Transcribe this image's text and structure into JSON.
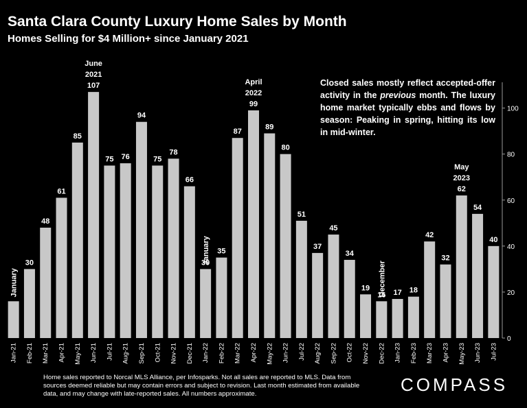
{
  "header": {
    "title": "Santa Clara County Luxury Home Sales by Month",
    "subtitle": "Homes Selling for $4 Million+ since January 2021"
  },
  "commentary": {
    "part1": "Closed sales mostly reflect accepted-offer activity in the ",
    "emphasis": "previous",
    "part2": " month. The luxury home market typically ebbs and flows by season: Peaking in spring, hitting its low in mid-winter."
  },
  "footnote": "Home sales reported to Norcal MLS Alliance, per Infosparks. Not all sales are reported to MLS. Data from sources deemed reliable but may contain errors and subject to revision.  Last month estimated from available data, and may change with late-reported sales. All numbers approximate.",
  "brand": "COMPASS",
  "colors": {
    "background": "#000000",
    "bar": "#c8c8c8",
    "text": "#ffffff"
  },
  "chart_data": {
    "type": "bar",
    "title": "Santa Clara County Luxury Home Sales by Month",
    "subtitle": "Homes Selling for $4 Million+ since January 2021",
    "categories": [
      "Jan-21",
      "Feb-21",
      "Mar-21",
      "Apr-21",
      "May-21",
      "Jun-21",
      "Jul-21",
      "Aug-21",
      "Sep-21",
      "Oct-21",
      "Nov-21",
      "Dec-21",
      "Jan-22",
      "Feb-22",
      "Mar-22",
      "Apr-22",
      "May-22",
      "Jun-22",
      "Jul-22",
      "Aug-22",
      "Sep-22",
      "Oct-22",
      "Nov-22",
      "Dec-22",
      "Jan-23",
      "Feb-23",
      "Mar-23",
      "Apr-23",
      "May-23",
      "Jun-23",
      "Jul-23"
    ],
    "values": [
      16,
      30,
      48,
      61,
      85,
      107,
      75,
      76,
      94,
      75,
      78,
      66,
      30,
      35,
      87,
      99,
      89,
      80,
      51,
      37,
      45,
      34,
      19,
      16,
      17,
      18,
      42,
      32,
      62,
      54,
      40
    ],
    "data_labels": [
      "",
      "30",
      "48",
      "61",
      "85",
      "107",
      "75",
      "76",
      "94",
      "75",
      "78",
      "66",
      "30",
      "35",
      "87",
      "99",
      "89",
      "80",
      "51",
      "37",
      "45",
      "34",
      "19",
      "16",
      "17",
      "18",
      "42",
      "32",
      "62",
      "54",
      "40"
    ],
    "ylim": [
      0,
      110
    ],
    "yticks": [
      0,
      20,
      40,
      60,
      80,
      100
    ],
    "y_axis_side": "right",
    "grid": false,
    "annotations": [
      {
        "index": 0,
        "text": "January",
        "orientation": "vertical"
      },
      {
        "index": 5,
        "lines": [
          "June",
          "2021"
        ],
        "orientation": "horizontal"
      },
      {
        "index": 12,
        "text": "January",
        "orientation": "vertical"
      },
      {
        "index": 15,
        "lines": [
          "April",
          "2022"
        ],
        "orientation": "horizontal"
      },
      {
        "index": 23,
        "text": "December",
        "orientation": "vertical"
      },
      {
        "index": 28,
        "lines": [
          "May",
          "2023"
        ],
        "orientation": "horizontal"
      }
    ]
  }
}
